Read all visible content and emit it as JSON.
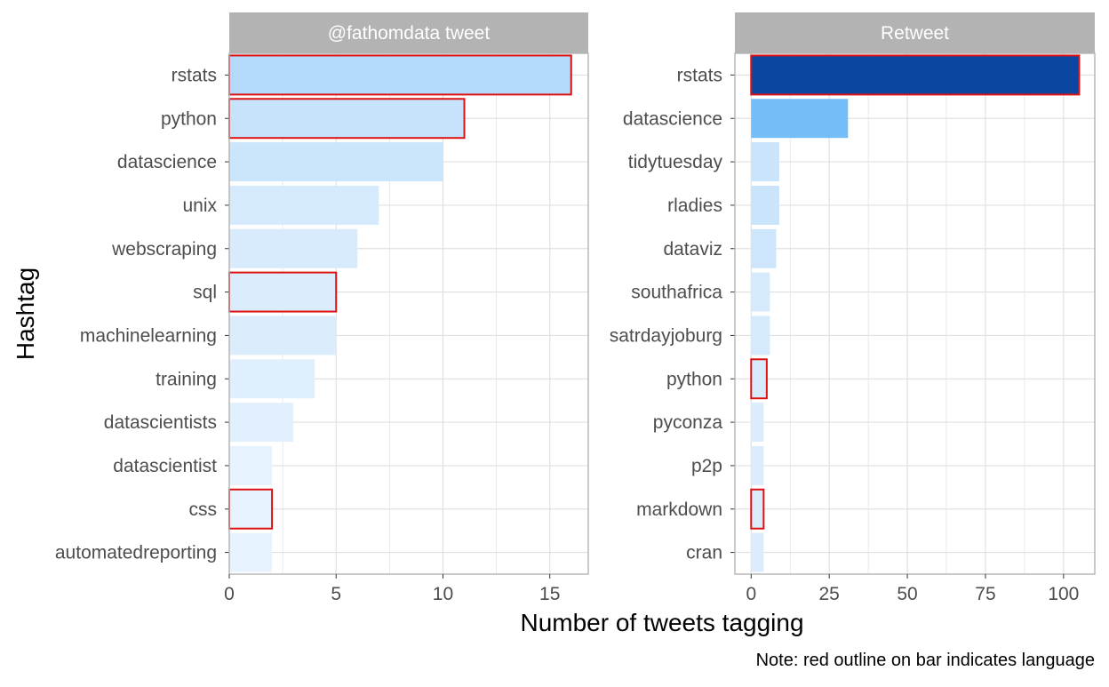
{
  "chart_data": {
    "type": "bar",
    "orientation": "horizontal",
    "xlabel": "Number of tweets tagging",
    "ylabel": "Hashtag",
    "caption": "Note: red outline on bar indicates language",
    "grid": true,
    "legend": "none",
    "colors": {
      "outline_language": "#dd1111",
      "strip_background": "#b3b3b3",
      "panel_border": "#b3b3b3",
      "grid": "#e0e0e0",
      "fill_low": "#eaf4fe",
      "fill_high": "#0b47a1"
    },
    "panels": [
      {
        "title": "@fathomdata tweet",
        "xlim": [
          0,
          16.8
        ],
        "xticks": [
          0,
          5,
          10,
          15
        ],
        "xtick_labels": [
          "0",
          "5",
          "10",
          "15"
        ],
        "bars": [
          {
            "label": "rstats",
            "value": 16,
            "language": true,
            "color": "#b3dafa"
          },
          {
            "label": "python",
            "value": 11,
            "language": true,
            "color": "#c7e3fb"
          },
          {
            "label": "datascience",
            "value": 10,
            "language": false,
            "color": "#cbe5fb"
          },
          {
            "label": "unix",
            "value": 7,
            "language": false,
            "color": "#d5eafc"
          },
          {
            "label": "webscraping",
            "value": 6,
            "language": false,
            "color": "#d8ebfc"
          },
          {
            "label": "sql",
            "value": 5,
            "language": true,
            "color": "#dbedfd"
          },
          {
            "label": "machinelearning",
            "value": 5,
            "language": false,
            "color": "#dbedfd"
          },
          {
            "label": "training",
            "value": 4,
            "language": false,
            "color": "#dfeffd"
          },
          {
            "label": "datascientists",
            "value": 3,
            "language": false,
            "color": "#e2f0fd"
          },
          {
            "label": "datascientist",
            "value": 2,
            "language": false,
            "color": "#e6f2fd"
          },
          {
            "label": "css",
            "value": 2,
            "language": true,
            "color": "#e6f2fd"
          },
          {
            "label": "automatedreporting",
            "value": 2,
            "language": false,
            "color": "#e6f2fd"
          }
        ]
      },
      {
        "title": "Retweet",
        "xlim": [
          -5.2,
          110
        ],
        "xticks": [
          0,
          25,
          50,
          75,
          100
        ],
        "xtick_labels": [
          "0",
          "25",
          "50",
          "75",
          "100"
        ],
        "bars": [
          {
            "label": "rstats",
            "value": 105,
            "language": true,
            "color": "#0b47a1"
          },
          {
            "label": "datascience",
            "value": 31,
            "language": false,
            "color": "#74bdf7"
          },
          {
            "label": "tidytuesday",
            "value": 9,
            "language": false,
            "color": "#c9e4fb"
          },
          {
            "label": "rladies",
            "value": 9,
            "language": false,
            "color": "#c9e4fb"
          },
          {
            "label": "dataviz",
            "value": 8,
            "language": false,
            "color": "#cde6fb"
          },
          {
            "label": "southafrica",
            "value": 6,
            "language": false,
            "color": "#d5eafc"
          },
          {
            "label": "satrdayjoburg",
            "value": 6,
            "language": false,
            "color": "#d5eafc"
          },
          {
            "label": "python",
            "value": 5,
            "language": true,
            "color": "#d8ebfc"
          },
          {
            "label": "pyconza",
            "value": 4,
            "language": false,
            "color": "#dbedfd"
          },
          {
            "label": "p2p",
            "value": 4,
            "language": false,
            "color": "#dbedfd"
          },
          {
            "label": "markdown",
            "value": 4,
            "language": true,
            "color": "#dbedfd"
          },
          {
            "label": "cran",
            "value": 4,
            "language": false,
            "color": "#dbedfd"
          }
        ]
      }
    ]
  }
}
